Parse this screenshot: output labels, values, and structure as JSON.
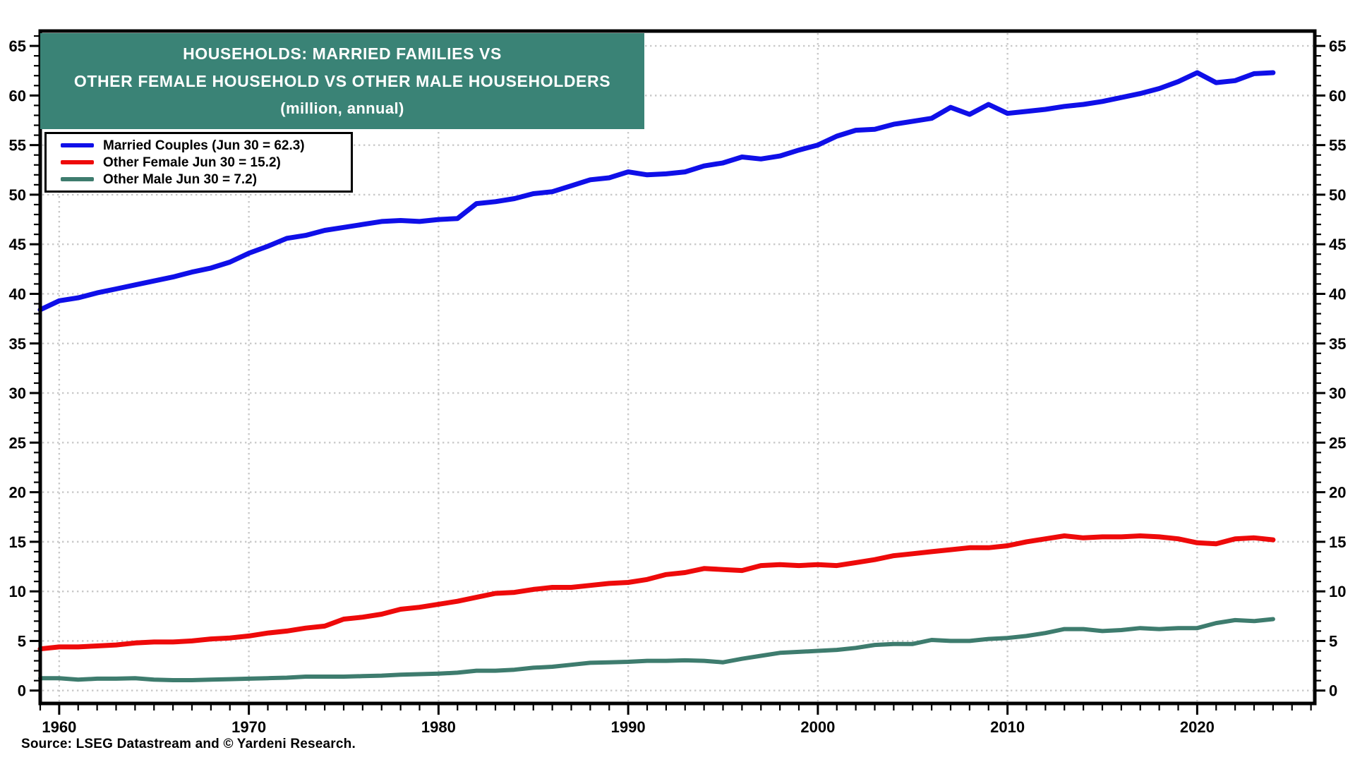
{
  "title": {
    "line1": "HOUSEHOLDS: MARRIED FAMILIES VS",
    "line2": "OTHER FEMALE HOUSEHOLD VS OTHER MALE HOUSEHOLDERS",
    "line3": "(million, annual)",
    "bg_color": "#3A8376",
    "text_color": "#FFFFFF"
  },
  "legend": {
    "items": [
      {
        "label": "Married Couples (Jun 30 = 62.3)",
        "color": "#0F0FE8"
      },
      {
        "label": "Other Female Jun 30 = 15.2)",
        "color": "#EE0A0A"
      },
      {
        "label": "Other Male Jun 30 = 7.2)",
        "color": "#3E7C6E"
      }
    ]
  },
  "source": "Source: LSEG Datastream and © Yardeni Research.",
  "chart_data": {
    "type": "line",
    "title": "HOUSEHOLDS: MARRIED FAMILIES VS OTHER FEMALE HOUSEHOLD VS OTHER MALE HOUSEHOLDERS (million, annual)",
    "xlabel": "",
    "ylabel": "million",
    "grid": "dotted",
    "legend_position": "top-left",
    "axis_color": "#000000",
    "grid_color": "#c9c9c9",
    "tick_label_color": "#000000",
    "xlim": [
      1959.0,
      2026.2
    ],
    "ylim": [
      -1.3,
      66.5
    ],
    "x_ticks_major": [
      1960,
      1970,
      1980,
      1990,
      2000,
      2010,
      2020
    ],
    "x_minor_start": 1959,
    "x_minor_end": 2026,
    "x_tick_minor_step": 1,
    "y_ticks_major": [
      0,
      5,
      10,
      15,
      20,
      25,
      30,
      35,
      40,
      45,
      50,
      55,
      60,
      65
    ],
    "y_minor_start": 0,
    "y_minor_end": 66,
    "y_tick_minor_step": 1,
    "years": [
      1959,
      1960,
      1961,
      1962,
      1963,
      1964,
      1965,
      1966,
      1967,
      1968,
      1969,
      1970,
      1971,
      1972,
      1973,
      1974,
      1975,
      1976,
      1977,
      1978,
      1979,
      1980,
      1981,
      1982,
      1983,
      1984,
      1985,
      1986,
      1987,
      1988,
      1989,
      1990,
      1991,
      1992,
      1993,
      1994,
      1995,
      1996,
      1997,
      1998,
      1999,
      2000,
      2001,
      2002,
      2003,
      2004,
      2005,
      2006,
      2007,
      2008,
      2009,
      2010,
      2011,
      2012,
      2013,
      2014,
      2015,
      2016,
      2017,
      2018,
      2019,
      2020,
      2021,
      2022,
      2023,
      2024
    ],
    "series": [
      {
        "name": "Married Couples (Jun 30 = 62.3)",
        "color": "#0F0FE8",
        "stroke_width": 7,
        "values": [
          38.4,
          39.3,
          39.6,
          40.1,
          40.5,
          40.9,
          41.3,
          41.7,
          42.2,
          42.6,
          43.2,
          44.1,
          44.8,
          45.6,
          45.9,
          46.4,
          46.7,
          47.0,
          47.3,
          47.4,
          47.3,
          47.5,
          47.6,
          49.1,
          49.3,
          49.6,
          50.1,
          50.3,
          50.9,
          51.5,
          51.7,
          52.3,
          52.0,
          52.1,
          52.3,
          52.9,
          53.2,
          53.8,
          53.6,
          53.9,
          54.5,
          55.0,
          55.9,
          56.5,
          56.6,
          57.1,
          57.4,
          57.7,
          58.8,
          58.1,
          59.1,
          58.2,
          58.4,
          58.6,
          58.9,
          59.1,
          59.4,
          59.8,
          60.2,
          60.7,
          61.4,
          62.3,
          61.3,
          61.5,
          62.2,
          62.3
        ]
      },
      {
        "name": "Other Female Jun 30 = 15.2)",
        "color": "#EE0A0A",
        "stroke_width": 7,
        "values": [
          4.2,
          4.4,
          4.4,
          4.5,
          4.6,
          4.8,
          4.9,
          4.9,
          5.0,
          5.2,
          5.3,
          5.5,
          5.8,
          6.0,
          6.3,
          6.5,
          7.2,
          7.4,
          7.7,
          8.2,
          8.4,
          8.7,
          9.0,
          9.4,
          9.8,
          9.9,
          10.2,
          10.4,
          10.4,
          10.6,
          10.8,
          10.9,
          11.2,
          11.7,
          11.9,
          12.3,
          12.2,
          12.1,
          12.6,
          12.7,
          12.6,
          12.7,
          12.6,
          12.9,
          13.2,
          13.6,
          13.8,
          14.0,
          14.2,
          14.4,
          14.4,
          14.6,
          15.0,
          15.3,
          15.6,
          15.4,
          15.5,
          15.5,
          15.6,
          15.5,
          15.3,
          14.9,
          14.8,
          15.3,
          15.4,
          15.2
        ]
      },
      {
        "name": "Other Male Jun 30 = 7.2)",
        "color": "#3E7C6E",
        "stroke_width": 6,
        "values": [
          1.25,
          1.25,
          1.1,
          1.2,
          1.2,
          1.25,
          1.1,
          1.05,
          1.05,
          1.1,
          1.15,
          1.2,
          1.25,
          1.3,
          1.4,
          1.4,
          1.4,
          1.45,
          1.5,
          1.6,
          1.65,
          1.7,
          1.8,
          2.0,
          2.0,
          2.1,
          2.3,
          2.4,
          2.6,
          2.8,
          2.85,
          2.9,
          3.0,
          3.0,
          3.05,
          3.0,
          2.85,
          3.2,
          3.5,
          3.8,
          3.9,
          4.0,
          4.1,
          4.3,
          4.6,
          4.7,
          4.7,
          5.1,
          5.0,
          5.0,
          5.2,
          5.3,
          5.5,
          5.8,
          6.2,
          6.2,
          6.0,
          6.1,
          6.3,
          6.2,
          6.3,
          6.3,
          6.8,
          7.1,
          7.0,
          7.2
        ]
      }
    ]
  }
}
